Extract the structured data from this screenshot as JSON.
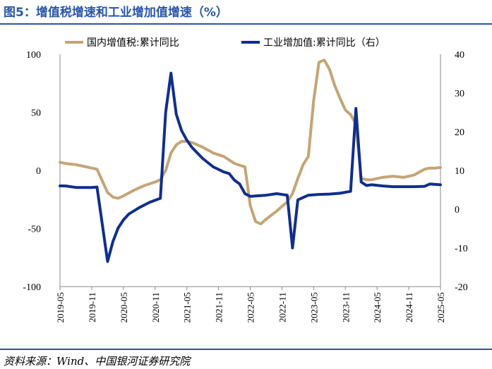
{
  "header": {
    "title": "图5：增值税增速和工业增加值增速（%）"
  },
  "footer": {
    "source": "资料来源：Wind、中国银河证券研究院"
  },
  "chart_data": {
    "type": "line",
    "title": "增值税增速和工业增加值增速（%）",
    "left_axis": {
      "ylim": [
        -100,
        100
      ],
      "ticks": [
        100,
        50,
        0,
        -50,
        -100
      ]
    },
    "right_axis": {
      "ylim": [
        -20,
        40
      ],
      "ticks": [
        40,
        30,
        20,
        10,
        0,
        -10,
        -20
      ]
    },
    "x_tick_labels": [
      "2019-05",
      "2019-11",
      "2020-05",
      "2020-11",
      "2021-05",
      "2021-11",
      "2022-05",
      "2022-11",
      "2023-05",
      "2023-11",
      "2024-05",
      "2024-11",
      "2025-05"
    ],
    "legend_position": "top",
    "colors": {
      "vat": "#c4a477",
      "industrial": "#102f8c"
    },
    "series": [
      {
        "name": "国内增值税:累计同比",
        "axis": "left",
        "points": [
          [
            "2019-05",
            7
          ],
          [
            "2019-06",
            6
          ],
          [
            "2019-08",
            5
          ],
          [
            "2019-10",
            3
          ],
          [
            "2019-12",
            1
          ],
          [
            "2020-02",
            -19
          ],
          [
            "2020-03",
            -23
          ],
          [
            "2020-04",
            -24
          ],
          [
            "2020-05",
            -22
          ],
          [
            "2020-07",
            -17
          ],
          [
            "2020-09",
            -13
          ],
          [
            "2020-11",
            -10
          ],
          [
            "2020-12",
            -8
          ],
          [
            "2021-01",
            0
          ],
          [
            "2021-02",
            15
          ],
          [
            "2021-03",
            22
          ],
          [
            "2021-04",
            25
          ],
          [
            "2021-05",
            25
          ],
          [
            "2021-06",
            24
          ],
          [
            "2021-08",
            20
          ],
          [
            "2021-10",
            15
          ],
          [
            "2021-12",
            12
          ],
          [
            "2022-02",
            6
          ],
          [
            "2022-04",
            3
          ],
          [
            "2022-05",
            -30
          ],
          [
            "2022-06",
            -44
          ],
          [
            "2022-07",
            -46
          ],
          [
            "2022-08",
            -42
          ],
          [
            "2022-10",
            -35
          ],
          [
            "2022-12",
            -27
          ],
          [
            "2023-01",
            -20
          ],
          [
            "2023-02",
            -7
          ],
          [
            "2023-03",
            5
          ],
          [
            "2023-04",
            12
          ],
          [
            "2023-05",
            60
          ],
          [
            "2023-06",
            93
          ],
          [
            "2023-07",
            95
          ],
          [
            "2023-08",
            87
          ],
          [
            "2023-09",
            73
          ],
          [
            "2023-10",
            62
          ],
          [
            "2023-11",
            52
          ],
          [
            "2023-12",
            48
          ],
          [
            "2024-01",
            40
          ],
          [
            "2024-02",
            -7
          ],
          [
            "2024-03",
            -8
          ],
          [
            "2024-04",
            -8
          ],
          [
            "2024-06",
            -6
          ],
          [
            "2024-08",
            -5
          ],
          [
            "2024-10",
            -6
          ],
          [
            "2024-12",
            -4
          ],
          [
            "2025-02",
            1
          ],
          [
            "2025-03",
            2
          ],
          [
            "2025-04",
            2
          ],
          [
            "2025-05",
            2.5
          ]
        ]
      },
      {
        "name": "工业增加值:累计同比（右）",
        "axis": "right",
        "points": [
          [
            "2019-05",
            6
          ],
          [
            "2019-06",
            6
          ],
          [
            "2019-08",
            5.6
          ],
          [
            "2019-11",
            5.6
          ],
          [
            "2019-12",
            5.7
          ],
          [
            "2020-02",
            -13.5
          ],
          [
            "2020-03",
            -8.4
          ],
          [
            "2020-04",
            -4.9
          ],
          [
            "2020-05",
            -2.8
          ],
          [
            "2020-06",
            -1.3
          ],
          [
            "2020-08",
            0.4
          ],
          [
            "2020-10",
            1.8
          ],
          [
            "2020-12",
            2.8
          ],
          [
            "2021-01",
            25
          ],
          [
            "2021-02",
            35.1
          ],
          [
            "2021-03",
            24.5
          ],
          [
            "2021-04",
            20.3
          ],
          [
            "2021-05",
            17.8
          ],
          [
            "2021-06",
            15.9
          ],
          [
            "2021-08",
            13.1
          ],
          [
            "2021-10",
            10.9
          ],
          [
            "2021-12",
            9.6
          ],
          [
            "2022-01",
            9.2
          ],
          [
            "2022-02",
            7.5
          ],
          [
            "2022-03",
            6.5
          ],
          [
            "2022-04",
            4
          ],
          [
            "2022-05",
            3.3
          ],
          [
            "2022-06",
            3.4
          ],
          [
            "2022-08",
            3.6
          ],
          [
            "2022-10",
            4
          ],
          [
            "2022-12",
            3.6
          ],
          [
            "2023-01",
            -10
          ],
          [
            "2023-02",
            2.4
          ],
          [
            "2023-03",
            3.0
          ],
          [
            "2023-04",
            3.6
          ],
          [
            "2023-06",
            3.8
          ],
          [
            "2023-08",
            3.9
          ],
          [
            "2023-10",
            4.1
          ],
          [
            "2023-12",
            4.6
          ],
          [
            "2024-01",
            26
          ],
          [
            "2024-02",
            7
          ],
          [
            "2024-03",
            6.1
          ],
          [
            "2024-04",
            6.3
          ],
          [
            "2024-06",
            6.0
          ],
          [
            "2024-08",
            5.8
          ],
          [
            "2024-10",
            5.8
          ],
          [
            "2024-12",
            5.8
          ],
          [
            "2025-02",
            5.9
          ],
          [
            "2025-03",
            6.5
          ],
          [
            "2025-05",
            6.3
          ]
        ]
      }
    ]
  }
}
